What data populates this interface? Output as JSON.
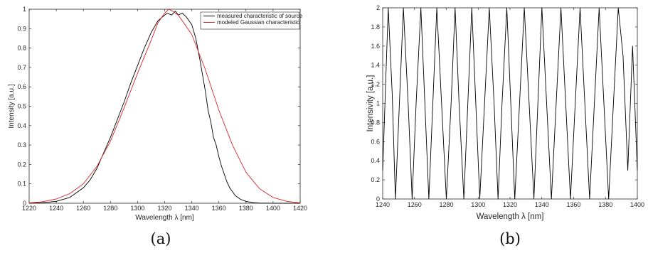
{
  "captions": {
    "a": "(a)",
    "b": "(b)"
  },
  "chart_data": [
    {
      "type": "line",
      "panel": "a",
      "xlabel": "Wavelength λ [nm]",
      "ylabel": "Intensity [a.u.]",
      "xlim": [
        1220,
        1420
      ],
      "ylim": [
        0,
        1
      ],
      "xticks": [
        1220,
        1240,
        1260,
        1280,
        1300,
        1320,
        1340,
        1360,
        1380,
        1400,
        1420
      ],
      "yticks": [
        0,
        0.1,
        0.2,
        0.3,
        0.4,
        0.5,
        0.6,
        0.7,
        0.8,
        0.9,
        1
      ],
      "ytick_labels": [
        "0",
        "0.1",
        "0.2",
        "0.3",
        "0.4",
        "0.5",
        "0.6",
        "0.7",
        "0.8",
        "0.9",
        "1"
      ],
      "grid": false,
      "legend_position": "top-right",
      "series": [
        {
          "name": "measured characteristic of source",
          "color": "#000000",
          "x": [
            1220,
            1230,
            1240,
            1250,
            1260,
            1265,
            1270,
            1275,
            1280,
            1285,
            1290,
            1295,
            1300,
            1305,
            1310,
            1315,
            1320,
            1322,
            1325,
            1328,
            1330,
            1333,
            1336,
            1340,
            1343,
            1346,
            1348,
            1350,
            1352,
            1354,
            1356,
            1358,
            1360,
            1362,
            1364,
            1366,
            1368,
            1370,
            1372,
            1374,
            1376,
            1378,
            1380,
            1382,
            1384,
            1386,
            1388,
            1390,
            1400,
            1420
          ],
          "y": [
            0,
            0.003,
            0.01,
            0.03,
            0.08,
            0.12,
            0.18,
            0.26,
            0.34,
            0.43,
            0.52,
            0.62,
            0.71,
            0.8,
            0.88,
            0.94,
            0.97,
            0.98,
            0.97,
            0.99,
            0.97,
            0.98,
            0.96,
            0.92,
            0.85,
            0.74,
            0.66,
            0.58,
            0.48,
            0.42,
            0.34,
            0.3,
            0.24,
            0.19,
            0.15,
            0.11,
            0.08,
            0.06,
            0.04,
            0.03,
            0.02,
            0.015,
            0.01,
            0.007,
            0.005,
            0.003,
            0.002,
            0.001,
            0,
            0
          ]
        },
        {
          "name": "modeled Gaussian characteristic",
          "color": "#d62728",
          "x": [
            1220,
            1230,
            1240,
            1250,
            1260,
            1270,
            1280,
            1290,
            1300,
            1310,
            1315,
            1320,
            1323,
            1326,
            1330,
            1340,
            1350,
            1360,
            1370,
            1380,
            1390,
            1400,
            1410,
            1420
          ],
          "y": [
            0.002,
            0.008,
            0.022,
            0.05,
            0.1,
            0.19,
            0.32,
            0.49,
            0.67,
            0.84,
            0.93,
            0.98,
            1.0,
            0.99,
            0.97,
            0.87,
            0.69,
            0.48,
            0.3,
            0.16,
            0.075,
            0.03,
            0.01,
            0.002
          ]
        }
      ]
    },
    {
      "type": "line",
      "panel": "b",
      "xlabel": "Wavelength λ [nm]",
      "ylabel": "Intensivity [a.u.]",
      "xlim": [
        1240,
        1400
      ],
      "ylim": [
        0,
        2
      ],
      "xticks": [
        1240,
        1260,
        1280,
        1300,
        1320,
        1340,
        1360,
        1380,
        1400
      ],
      "yticks": [
        0,
        0.2,
        0.4,
        0.6,
        0.8,
        1,
        1.2,
        1.4,
        1.6,
        1.8,
        2
      ],
      "ytick_labels": [
        "0",
        "0.2",
        "0.4",
        "0.6",
        "0.8",
        "1",
        "1.2",
        "1.4",
        "1.6",
        "1.8",
        "2"
      ],
      "grid": false,
      "series": [
        {
          "color": "#000000",
          "x": [
            1240,
            1243.5,
            1246,
            1248,
            1250.5,
            1253,
            1256,
            1258.5,
            1261,
            1264,
            1266.5,
            1269,
            1271.5,
            1274,
            1277,
            1280,
            1283,
            1285.5,
            1288,
            1291,
            1293.5,
            1296,
            1298.5,
            1301,
            1304,
            1307,
            1310,
            1312.5,
            1315,
            1318,
            1320.5,
            1323,
            1326,
            1329,
            1332,
            1335,
            1337.5,
            1340,
            1343,
            1346,
            1349,
            1352,
            1355,
            1358,
            1361,
            1364,
            1367,
            1370,
            1373,
            1376,
            1379,
            1382,
            1385,
            1388,
            1391,
            1394,
            1397,
            1400
          ],
          "y": [
            0.3,
            2,
            1.1,
            0,
            1,
            2,
            1,
            0,
            1,
            2,
            1,
            0,
            1,
            2,
            1,
            0,
            1,
            2,
            1,
            0,
            1,
            2,
            1,
            0,
            1,
            2,
            1,
            0,
            1,
            2,
            1,
            0,
            1,
            2,
            1,
            0,
            1,
            2,
            1,
            0,
            1,
            2,
            1,
            0,
            1,
            2,
            1,
            0,
            1,
            2,
            1,
            0,
            1,
            2,
            1.5,
            0.3,
            1.6,
            0.3
          ]
        }
      ]
    }
  ]
}
